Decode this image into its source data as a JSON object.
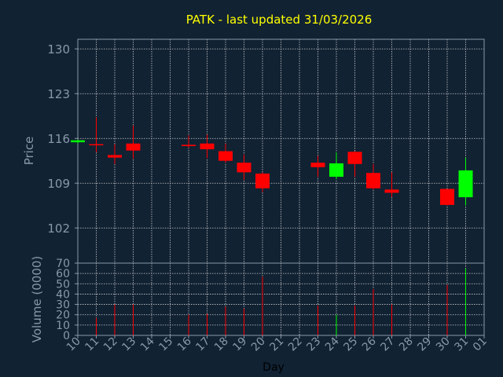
{
  "chart_data": {
    "type": "candlestick",
    "title": "PATK - last updated 31/03/2026",
    "ylabel": "Price",
    "volume_ylabel": "Volume (0000)",
    "xlabel": "Day",
    "ylim": [
      96.5,
      131.5
    ],
    "yticks": [
      130,
      123,
      116,
      109,
      102
    ],
    "volume_ylim": [
      0,
      70
    ],
    "volume_yticks": [
      0,
      10,
      20,
      30,
      40,
      50,
      60,
      70
    ],
    "x_ticks": [
      "10",
      "11",
      "12",
      "13",
      "14",
      "15",
      "16",
      "17",
      "18",
      "19",
      "20",
      "21",
      "22",
      "23",
      "24",
      "25",
      "26",
      "27",
      "28",
      "29",
      "30",
      "31",
      "01"
    ],
    "grid": true,
    "colors": {
      "background": "#112233",
      "axis": "#8899AA",
      "grid": "#CCCCCC",
      "title": "#FFFF00",
      "label": "#8899AA",
      "up": "#00FF00",
      "down": "#FF0000"
    },
    "candles": [
      {
        "day": "10",
        "open": 115.4,
        "high": 115.8,
        "low": 115.2,
        "close": 115.7,
        "volume": 0
      },
      {
        "day": "11",
        "open": 115.1,
        "high": 119.3,
        "low": 113.8,
        "close": 115.0,
        "volume": 17
      },
      {
        "day": "12",
        "open": 113.4,
        "high": 115.1,
        "low": 112.0,
        "close": 113.0,
        "volume": 30
      },
      {
        "day": "13",
        "open": 115.2,
        "high": 118.0,
        "low": 112.8,
        "close": 114.1,
        "volume": 30
      },
      {
        "day": "16",
        "open": 115.0,
        "high": 116.5,
        "low": 114.5,
        "close": 114.8,
        "volume": 20
      },
      {
        "day": "17",
        "open": 115.2,
        "high": 116.6,
        "low": 112.9,
        "close": 114.3,
        "volume": 21
      },
      {
        "day": "18",
        "open": 114.0,
        "high": 115.2,
        "low": 112.2,
        "close": 112.5,
        "volume": 28
      },
      {
        "day": "19",
        "open": 112.2,
        "high": 113.5,
        "low": 109.5,
        "close": 110.7,
        "volume": 26
      },
      {
        "day": "20",
        "open": 110.5,
        "high": 110.7,
        "low": 107.6,
        "close": 108.2,
        "volume": 57
      },
      {
        "day": "23",
        "open": 112.2,
        "high": 113.3,
        "low": 110.0,
        "close": 111.5,
        "volume": 29
      },
      {
        "day": "24",
        "open": 110.0,
        "high": 113.8,
        "low": 109.6,
        "close": 112.1,
        "volume": 20
      },
      {
        "day": "25",
        "open": 113.9,
        "high": 114.0,
        "low": 110.0,
        "close": 112.0,
        "volume": 29
      },
      {
        "day": "26",
        "open": 110.6,
        "high": 112.0,
        "low": 108.0,
        "close": 108.2,
        "volume": 45
      },
      {
        "day": "27",
        "open": 108.0,
        "high": 110.7,
        "low": 106.8,
        "close": 107.5,
        "volume": 30
      },
      {
        "day": "30",
        "open": 108.1,
        "high": 108.1,
        "low": 105.5,
        "close": 105.6,
        "volume": 49
      },
      {
        "day": "31",
        "open": 106.8,
        "high": 113.0,
        "low": 105.5,
        "close": 111.0,
        "volume": 65
      }
    ]
  }
}
